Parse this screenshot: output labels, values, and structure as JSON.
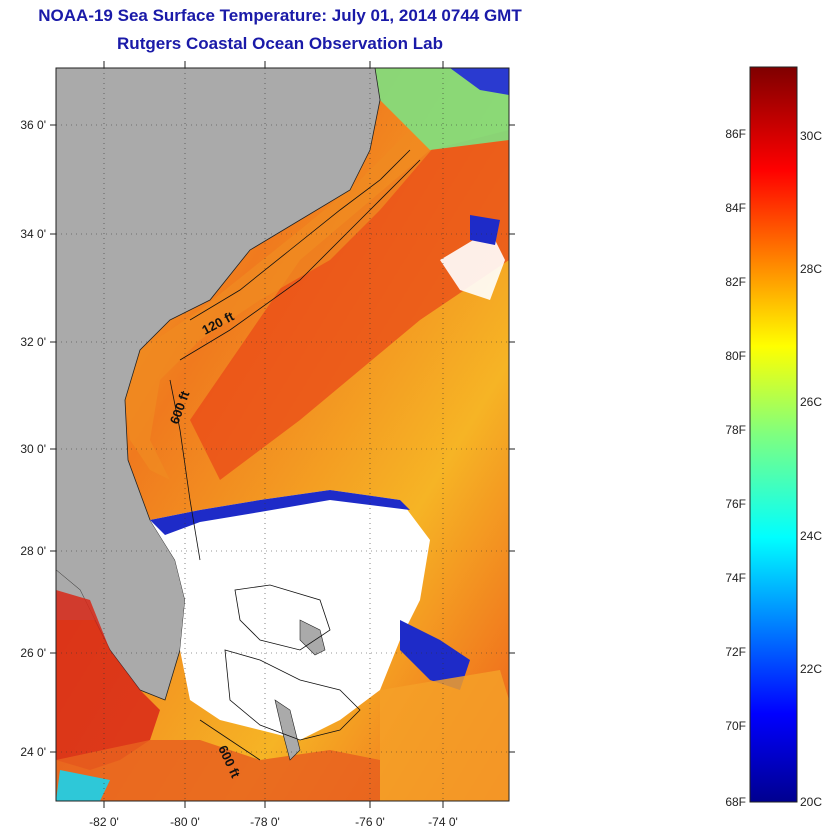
{
  "title": "NOAA-19 Sea Surface Temperature:  July 01, 2014 0744 GMT",
  "subtitle": "Rutgers Coastal Ocean Observation Lab",
  "map": {
    "lat_labels": [
      "36 0'",
      "34 0'",
      "32 0'",
      "30 0'",
      "28 0'",
      "26 0'",
      "24 0'"
    ],
    "lon_labels": [
      "-82 0'",
      "-80 0'",
      "-78 0'",
      "-76 0'",
      "-74 0'"
    ],
    "contour_labels": [
      "120 ft",
      "600 ft",
      "600 ft"
    ],
    "colors": {
      "land": "#aaaaaa",
      "cloud": "#ffffff",
      "warm": "#ee3a1a",
      "cool": "#1a22c8"
    }
  },
  "colorbar": {
    "fahrenheit_labels": [
      "86F",
      "84F",
      "82F",
      "80F",
      "78F",
      "76F",
      "74F",
      "72F",
      "70F",
      "68F"
    ],
    "celsius_labels": [
      "30C",
      "28C",
      "26C",
      "24C",
      "22C",
      "20C"
    ],
    "min_f": 68,
    "max_f": 88
  }
}
